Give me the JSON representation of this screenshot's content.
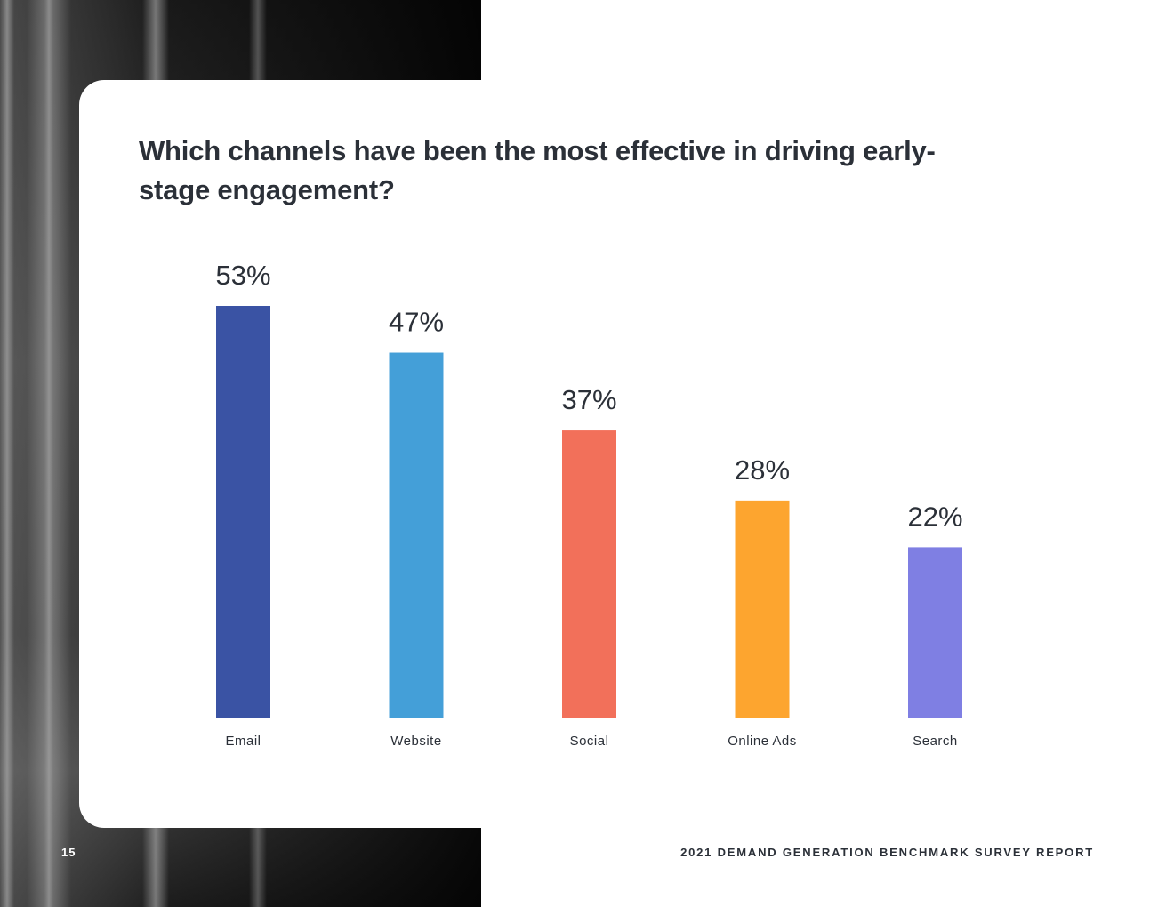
{
  "page": {
    "number": "15",
    "report_name": "2021 DEMAND GENERATION BENCHMARK SURVEY REPORT"
  },
  "chart_data": {
    "type": "bar",
    "title": "Which channels have been the most effective in driving early-stage engagement?",
    "categories": [
      "Email",
      "Website",
      "Social",
      "Online Ads",
      "Search"
    ],
    "values": [
      53,
      47,
      37,
      28,
      22
    ],
    "value_labels": [
      "53%",
      "47%",
      "37%",
      "28%",
      "22%"
    ],
    "colors": [
      "#3a53a4",
      "#449fd8",
      "#f2705a",
      "#fda52f",
      "#7f7fe3"
    ],
    "ylim": [
      0,
      53
    ],
    "grid": false,
    "legend": "none"
  }
}
